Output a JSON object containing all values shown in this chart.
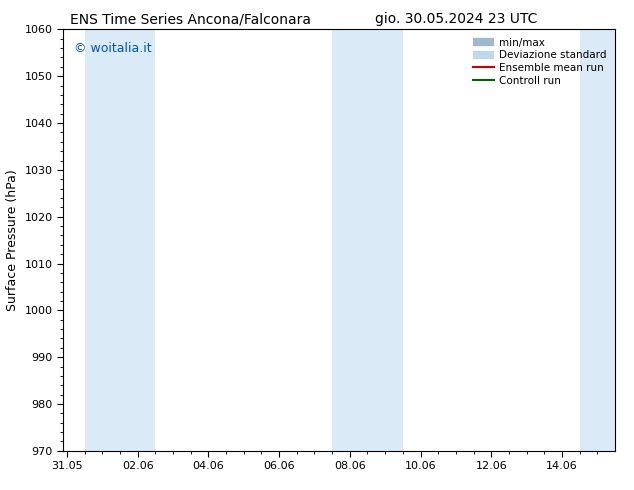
{
  "title_left": "ENS Time Series Ancona/Falconara",
  "title_right": "gio. 30.05.2024 23 UTC",
  "ylabel": "Surface Pressure (hPa)",
  "ylim": [
    970,
    1060
  ],
  "yticks": [
    970,
    980,
    990,
    1000,
    1010,
    1020,
    1030,
    1040,
    1050,
    1060
  ],
  "xtick_labels": [
    "31.05",
    "02.06",
    "04.06",
    "06.06",
    "08.06",
    "10.06",
    "12.06",
    "14.06"
  ],
  "xtick_positions": [
    0,
    2,
    4,
    6,
    8,
    10,
    12,
    14
  ],
  "xlim": [
    -0.1,
    15.5
  ],
  "shaded_bands": [
    {
      "x_start": 0.5,
      "x_end": 2.5
    },
    {
      "x_start": 7.5,
      "x_end": 9.5
    },
    {
      "x_start": 14.5,
      "x_end": 15.5
    }
  ],
  "shade_color": "#daeaf7",
  "watermark_text": "© woitalia.it",
  "watermark_color": "#0055cc",
  "legend_entries": [
    {
      "label": "min/max",
      "color": "#a0b8cc",
      "type": "errorbar"
    },
    {
      "label": "Deviazione standard",
      "color": "#c0d8ec",
      "type": "errorbar"
    },
    {
      "label": "Ensemble mean run",
      "color": "#cc0000",
      "type": "line"
    },
    {
      "label": "Controll run",
      "color": "#006600",
      "type": "line"
    }
  ],
  "background_color": "#ffffff",
  "title_fontsize": 10,
  "axis_fontsize": 9,
  "tick_fontsize": 8,
  "watermark_fontsize": 9,
  "legend_fontsize": 7.5
}
